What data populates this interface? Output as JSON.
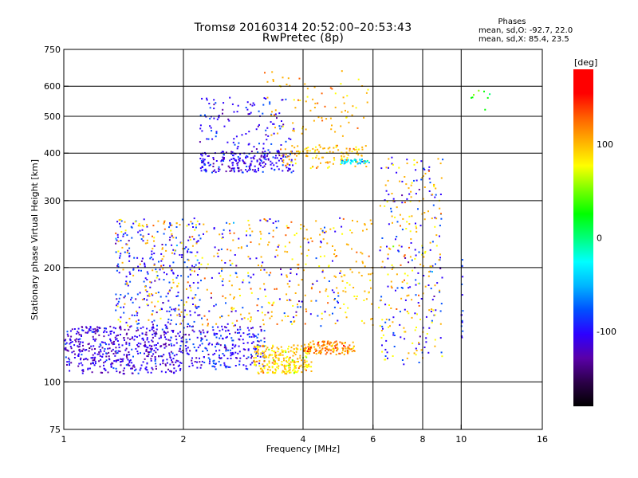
{
  "chart_data": {
    "type": "scatter",
    "title": "Tromsø 20160314 20:52:00–20:53:43",
    "subtitle": "RwPretec (8p)",
    "xlabel": "Frequency [MHz]",
    "ylabel": "Stationary phase Virtual Height [km]",
    "x_scale": "log",
    "y_scale": "log",
    "xlim": [
      1,
      16
    ],
    "ylim": [
      75,
      750
    ],
    "x_ticks": [
      1,
      2,
      4,
      6,
      8,
      10,
      16
    ],
    "x_tick_labels": [
      "1",
      "2",
      "4",
      "6",
      "8",
      "10",
      "16"
    ],
    "y_ticks": [
      75,
      100,
      200,
      300,
      400,
      500,
      600,
      750
    ],
    "y_tick_labels": [
      "75",
      "100",
      "200",
      "300",
      "400",
      "500",
      "600",
      "750"
    ],
    "x_gridlines": [
      2,
      4,
      6,
      8,
      10
    ],
    "y_gridlines": [
      100,
      200,
      300,
      400,
      500,
      600
    ],
    "grid": true,
    "stats_box": {
      "title": "Phases",
      "line1": "mean, sd,O:  -92.7, 22.0",
      "line2": "mean, sd,X:  85.4, 23.5"
    },
    "colorbar": {
      "label": "[deg]",
      "range": [
        -180,
        180
      ],
      "ticks": [
        -100,
        0,
        100
      ],
      "tick_labels": [
        "-100",
        "0",
        "100"
      ],
      "colormap": [
        "#000000",
        "#2b0047",
        "#5a00a8",
        "#2d00ff",
        "#0050ff",
        "#00b4ff",
        "#00ffff",
        "#00ff7a",
        "#00ff00",
        "#7aff00",
        "#ffff00",
        "#ffb000",
        "#ff6000",
        "#ff0000",
        "#ff0000"
      ]
    },
    "clusters": [
      {
        "x_range": [
          1.0,
          2.0
        ],
        "y_range": [
          105,
          140
        ],
        "phase": -110,
        "count": 520
      },
      {
        "x_range": [
          1.35,
          2.2
        ],
        "y_range": [
          140,
          270
        ],
        "phase": -95,
        "count": 260
      },
      {
        "x_range": [
          1.35,
          2.1
        ],
        "y_range": [
          140,
          270
        ],
        "phase": 95,
        "count": 110
      },
      {
        "x_range": [
          2.0,
          3.2
        ],
        "y_range": [
          108,
          140
        ],
        "phase": -100,
        "count": 240
      },
      {
        "x_range": [
          3.0,
          4.2
        ],
        "y_range": [
          105,
          125
        ],
        "phase": 90,
        "count": 260
      },
      {
        "x_range": [
          4.0,
          5.4
        ],
        "y_range": [
          118,
          128
        ],
        "phase": 115,
        "count": 130
      },
      {
        "x_range": [
          2.1,
          6.0
        ],
        "y_range": [
          140,
          270
        ],
        "phase": 100,
        "count": 280
      },
      {
        "x_range": [
          2.1,
          5.0
        ],
        "y_range": [
          140,
          270
        ],
        "phase": -95,
        "count": 120
      },
      {
        "x_range": [
          2.2,
          3.8
        ],
        "y_range": [
          355,
          405
        ],
        "phase": -105,
        "count": 220
      },
      {
        "x_range": [
          2.2,
          3.8
        ],
        "y_range": [
          405,
          560
        ],
        "phase": -100,
        "count": 110
      },
      {
        "x_range": [
          3.5,
          5.8
        ],
        "y_range": [
          365,
          420
        ],
        "phase": 100,
        "count": 120
      },
      {
        "x_range": [
          5.0,
          5.9
        ],
        "y_range": [
          375,
          385
        ],
        "phase": -40,
        "count": 40
      },
      {
        "x_range": [
          3.2,
          5.9
        ],
        "y_range": [
          440,
          660
        ],
        "phase": 100,
        "count": 80
      },
      {
        "x_range": [
          6.2,
          9.0
        ],
        "y_range": [
          110,
          400
        ],
        "phase": -95,
        "count": 150
      },
      {
        "x_range": [
          6.2,
          9.0
        ],
        "y_range": [
          110,
          400
        ],
        "phase": 95,
        "count": 170
      },
      {
        "x_range": [
          10.0,
          10.1
        ],
        "y_range": [
          125,
          210
        ],
        "phase": -100,
        "count": 15
      },
      {
        "x_range": [
          10.5,
          12.0
        ],
        "y_range": [
          510,
          590
        ],
        "phase": 30,
        "count": 8
      }
    ]
  }
}
